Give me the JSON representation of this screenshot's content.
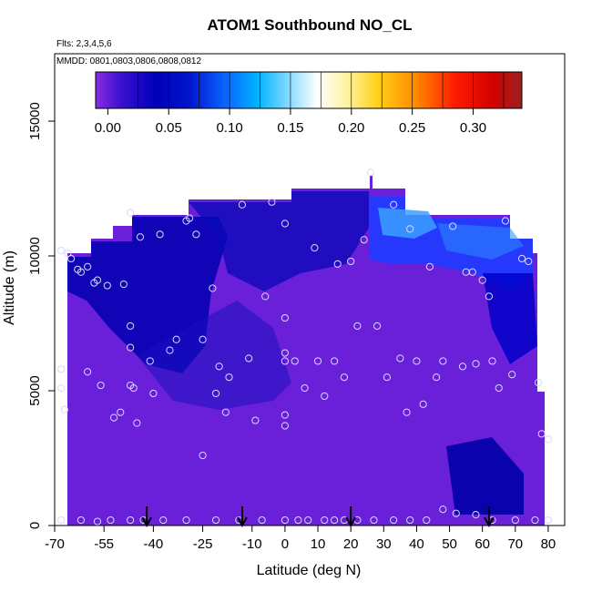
{
  "chart_data": {
    "type": "heatmap",
    "title": "ATOM1 Southbound NO_CL",
    "notes": {
      "flights": "Flts: 2,3,4,5,6",
      "dates": "MMDD: 0801,0803,0806,0808,0812"
    },
    "xlabel": "Latitude (deg N)",
    "ylabel": "Altitude (m)",
    "xlim": [
      -70,
      85
    ],
    "ylim": [
      0,
      17500
    ],
    "x_ticks": [
      -70,
      -55,
      -40,
      -25,
      -10,
      0,
      10,
      20,
      30,
      40,
      50,
      60,
      70,
      80
    ],
    "y_ticks": [
      0,
      5000,
      10000,
      15000
    ],
    "colorbar": {
      "range": [
        -0.01,
        0.34
      ],
      "ticks": [
        "0.00",
        "0.05",
        "0.10",
        "0.15",
        "0.20",
        "0.25",
        "0.30"
      ],
      "tick_values": [
        0.0,
        0.05,
        0.1,
        0.15,
        0.2,
        0.25,
        0.3
      ]
    },
    "grid": false,
    "arrow_latitudes": [
      -42,
      -13,
      20,
      62
    ],
    "field_regions": [
      {
        "region": "lower troposphere, all latitudes",
        "altitude_range": [
          0,
          5000
        ],
        "value": 0.005
      },
      {
        "region": "southern upper troposphere",
        "lat_range": [
          -45,
          -20
        ],
        "altitude_range": [
          6000,
          11500
        ],
        "value": 0.03
      },
      {
        "region": "tropical tropopause",
        "lat_range": [
          0,
          25
        ],
        "altitude_range": [
          10000,
          12500
        ],
        "value": 0.04
      },
      {
        "region": "northern upper troposphere",
        "lat_range": [
          28,
          70
        ],
        "altitude_range": [
          10000,
          12000
        ],
        "value": 0.1
      },
      {
        "region": "arctic boundary layer",
        "lat_range": [
          52,
          66
        ],
        "altitude_range": [
          0,
          2500
        ],
        "value": 0.045
      }
    ],
    "sample_points": [
      [
        -68,
        10200
      ],
      [
        -66,
        10100
      ],
      [
        -65,
        9900
      ],
      [
        -63,
        9500
      ],
      [
        -62,
        9400
      ],
      [
        -60,
        9600
      ],
      [
        -58,
        9000
      ],
      [
        -57,
        9100
      ],
      [
        -54,
        8900
      ],
      [
        -49,
        8950
      ],
      [
        -47,
        11600
      ],
      [
        -47,
        7400
      ],
      [
        -47,
        6600
      ],
      [
        -47,
        5200
      ],
      [
        -46,
        5100
      ],
      [
        -44,
        10700
      ],
      [
        -41,
        6100
      ],
      [
        -40,
        4900
      ],
      [
        -38,
        10800
      ],
      [
        -35,
        6500
      ],
      [
        -33,
        6900
      ],
      [
        -30,
        11300
      ],
      [
        -29,
        11400
      ],
      [
        -27,
        10800
      ],
      [
        -25,
        6900
      ],
      [
        -22,
        8800
      ],
      [
        -21,
        4900
      ],
      [
        -20,
        5900
      ],
      [
        -18,
        4200
      ],
      [
        -17,
        5500
      ],
      [
        -13,
        11900
      ],
      [
        -11,
        6200
      ],
      [
        -9,
        3900
      ],
      [
        -6,
        8500
      ],
      [
        -4,
        12000
      ],
      [
        0,
        6400
      ],
      [
        0,
        6100
      ],
      [
        0,
        4100
      ],
      [
        0,
        3700
      ],
      [
        0,
        7700
      ],
      [
        0,
        11200
      ],
      [
        3,
        6100
      ],
      [
        6,
        5100
      ],
      [
        9,
        10300
      ],
      [
        10,
        6100
      ],
      [
        12,
        4800
      ],
      [
        15,
        6100
      ],
      [
        16,
        9700
      ],
      [
        18,
        5500
      ],
      [
        20,
        9800
      ],
      [
        22,
        7400
      ],
      [
        24,
        10600
      ],
      [
        26,
        13100
      ],
      [
        28,
        7400
      ],
      [
        31,
        5500
      ],
      [
        33,
        11900
      ],
      [
        35,
        6200
      ],
      [
        37,
        4200
      ],
      [
        38,
        11000
      ],
      [
        40,
        6100
      ],
      [
        42,
        4500
      ],
      [
        44,
        9600
      ],
      [
        46,
        5500
      ],
      [
        48,
        6100
      ],
      [
        51,
        11100
      ],
      [
        54,
        5900
      ],
      [
        55,
        9400
      ],
      [
        57,
        9400
      ],
      [
        58,
        6000
      ],
      [
        60,
        9100
      ],
      [
        62,
        8500
      ],
      [
        63,
        6100
      ],
      [
        65,
        5100
      ],
      [
        67,
        11300
      ],
      [
        69,
        5600
      ],
      [
        72,
        9900
      ],
      [
        74,
        9800
      ],
      [
        77,
        5300
      ],
      [
        78,
        3400
      ],
      [
        80,
        3200
      ],
      [
        -68,
        5800
      ],
      [
        -68,
        5100
      ],
      [
        -67,
        4300
      ],
      [
        -60,
        5700
      ],
      [
        -56,
        5200
      ],
      [
        -52,
        4000
      ],
      [
        -50,
        4200
      ],
      [
        -45,
        3800
      ],
      [
        -25,
        2600
      ],
      [
        -68,
        200
      ],
      [
        -62,
        200
      ],
      [
        -57,
        150
      ],
      [
        -53,
        200
      ],
      [
        -47,
        200
      ],
      [
        -43,
        200
      ],
      [
        -37,
        200
      ],
      [
        -30,
        200
      ],
      [
        -21,
        200
      ],
      [
        -14,
        200
      ],
      [
        -7,
        200
      ],
      [
        0,
        200
      ],
      [
        4,
        200
      ],
      [
        7,
        200
      ],
      [
        12,
        200
      ],
      [
        15,
        200
      ],
      [
        18,
        200
      ],
      [
        22,
        200
      ],
      [
        27,
        200
      ],
      [
        33,
        200
      ],
      [
        38,
        200
      ],
      [
        43,
        200
      ],
      [
        48,
        600
      ],
      [
        52,
        450
      ],
      [
        58,
        400
      ],
      [
        63,
        200
      ],
      [
        70,
        200
      ],
      [
        76,
        200
      ],
      [
        80,
        200
      ]
    ]
  }
}
